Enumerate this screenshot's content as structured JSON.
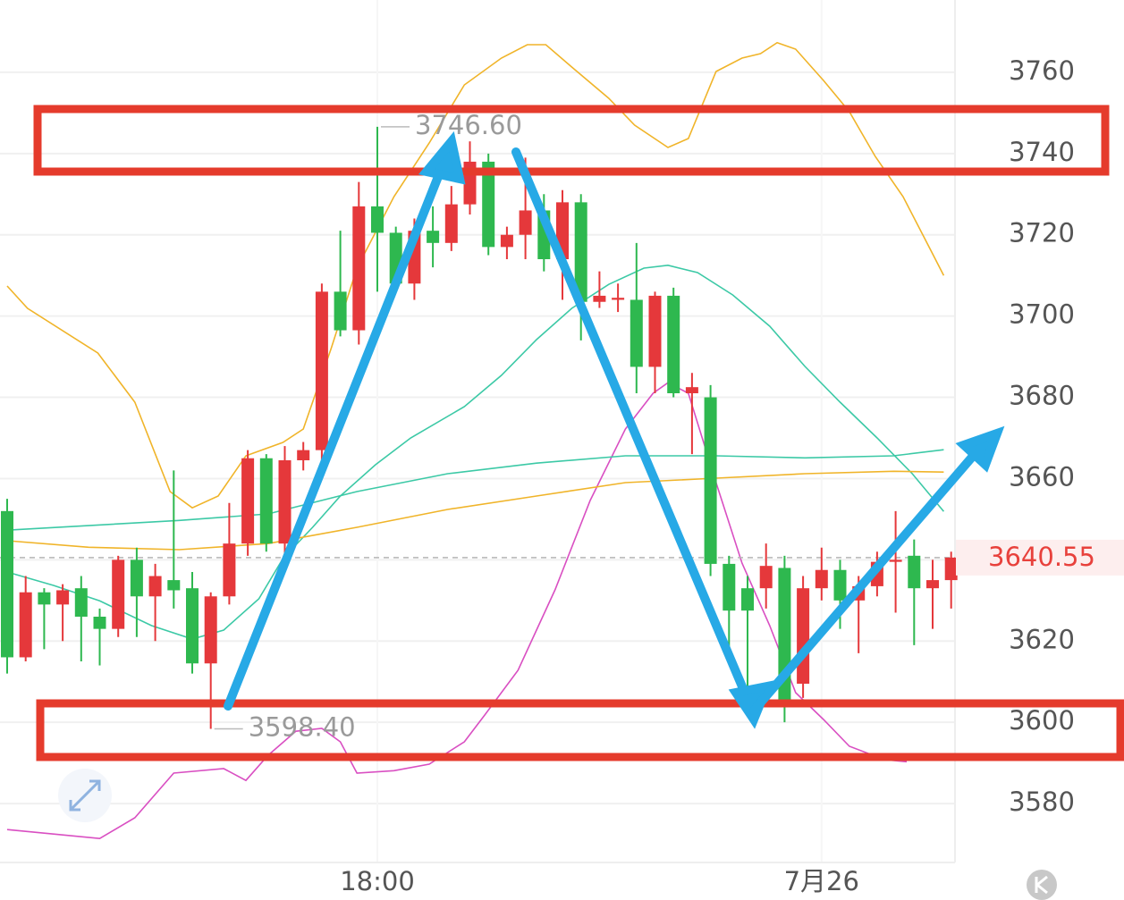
{
  "chart_data": {
    "type": "candlestick",
    "categories": [
      null,
      null,
      null,
      null,
      null,
      null,
      null,
      null,
      null,
      null,
      null,
      null,
      null,
      null,
      null,
      null,
      null,
      null,
      null,
      null,
      "18:00",
      null,
      null,
      null,
      null,
      null,
      null,
      null,
      null,
      null,
      null,
      null,
      null,
      null,
      null,
      null,
      null,
      null,
      null,
      null,
      null,
      null,
      null,
      null,
      "7月26",
      null,
      null,
      null,
      null,
      null,
      null,
      null
    ],
    "open": [
      3652,
      3616,
      3632,
      3629,
      3633,
      3626,
      3623,
      3640,
      3631,
      3635,
      3633,
      3614.5,
      3631,
      3644,
      3665,
      3644,
      3664.5,
      3667,
      3706,
      3696.5,
      3727,
      3720.5,
      3708,
      3721,
      3718,
      3727.5,
      3738,
      3717,
      3720,
      3726,
      3714,
      3728,
      3703.5,
      3704,
      3704,
      3687.5,
      3705,
      3681,
      3680,
      3639,
      3633,
      3633,
      3638,
      3609.5,
      3633,
      3637.5,
      3630,
      3633.5,
      3639.5,
      3641,
      3633,
      3635
    ],
    "high": [
      3655,
      3636,
      3633,
      3634,
      3636,
      3628,
      3641,
      3643,
      3639,
      3662,
      3637,
      3632,
      3654,
      3667,
      3666,
      3668,
      3669,
      3708,
      3721,
      3733,
      3746.6,
      3722,
      3724,
      3727,
      3732,
      3743,
      3740,
      3722,
      3739,
      3730,
      3731,
      3730,
      3711,
      3708,
      3718,
      3706,
      3707,
      3686,
      3683,
      3641,
      3636,
      3644,
      3641,
      3636,
      3643,
      3640,
      3636,
      3642,
      3652,
      3645,
      3640,
      3642
    ],
    "low": [
      3612,
      3615,
      3618,
      3620,
      3615,
      3614,
      3621,
      3621,
      3620,
      3628,
      3612,
      3598.4,
      3629,
      3641,
      3642,
      3641,
      3662,
      3664,
      3695,
      3693,
      3706,
      3706,
      3704,
      3712,
      3716,
      3725,
      3715,
      3714,
      3714,
      3711,
      3704,
      3694,
      3702,
      3701,
      3681,
      3681,
      3680,
      3666,
      3636,
      3617,
      3605,
      3628,
      3600,
      3606,
      3630,
      3623,
      3617,
      3631,
      3627,
      3619,
      3623,
      3628
    ],
    "close": [
      3616,
      3632,
      3629,
      3632.5,
      3626,
      3623,
      3640,
      3631,
      3636,
      3632.5,
      3614.5,
      3631,
      3644,
      3665,
      3644,
      3664.5,
      3667,
      3706,
      3696.5,
      3727,
      3720.5,
      3708,
      3721,
      3718,
      3727.5,
      3738,
      3717,
      3720,
      3726,
      3714,
      3728,
      3703.5,
      3705,
      3704.5,
      3687.5,
      3705,
      3681,
      3682.5,
      3639,
      3627.5,
      3627.5,
      3638.5,
      3604,
      3633,
      3637.5,
      3630,
      3633.5,
      3639.5,
      3640,
      3633,
      3635,
      3640.55
    ],
    "up_color": "#e5383b",
    "down_color": "#2eb84f",
    "lines": [
      {
        "color": "#f0b429",
        "x": [
          0,
          1.1,
          4.9,
          6.9,
          8.8,
          10,
          11.4,
          12.9,
          14.9,
          16,
          17.5,
          18.9,
          20.9,
          22.8,
          24.7,
          26.7,
          28.1,
          29.1,
          30.5,
          32.5,
          33.9,
          35.7,
          36.8,
          38.3,
          39.7,
          40.7,
          41.6,
          42.6,
          44.1,
          45.5,
          46.9,
          48.4,
          49.9,
          50.6
        ],
        "values": [
          3707.4,
          3701.9,
          3690.9,
          3678.8,
          3656.8,
          3652.8,
          3655.7,
          3665.6,
          3668.9,
          3672.2,
          3692,
          3711.8,
          3729.4,
          3742.6,
          3756.9,
          3763.5,
          3766.8,
          3766.8,
          3761.3,
          3753.6,
          3747,
          3741.5,
          3743.7,
          3760.2,
          3763.5,
          3764.6,
          3767.3,
          3765.7,
          3758,
          3750.3,
          3739.3,
          3729.4,
          3716.2,
          3710
        ]
      },
      {
        "color": "#d94fc2",
        "x": [
          0,
          2.5,
          5,
          6.9,
          9,
          11.7,
          12.9,
          14.1,
          15.6,
          17,
          18,
          18.9,
          20.9,
          22.8,
          24.7,
          25.8,
          27.6,
          29.6,
          31.5,
          33.4,
          34.9,
          35.7,
          36.8,
          38.3,
          39.7,
          41.2,
          42.6,
          44.1,
          45.5,
          47.4,
          48.6
        ],
        "values": [
          3573.6,
          3572.5,
          3571.4,
          3576.5,
          3587.5,
          3588.6,
          3585.7,
          3591.9,
          3597.8,
          3598.5,
          3595.2,
          3587.5,
          3588.1,
          3589.7,
          3595.2,
          3601.8,
          3612.8,
          3632.6,
          3654.6,
          3672.2,
          3681,
          3683.6,
          3681,
          3659,
          3639.2,
          3623.8,
          3607.3,
          3600.7,
          3594.1,
          3590.8,
          3590.3
        ]
      },
      {
        "color": "#3cc9a6",
        "x": [
          0,
          2.5,
          5,
          7.8,
          10,
          11.7,
          13.6,
          14.9,
          16.5,
          18,
          19.9,
          21.8,
          24.7,
          26.7,
          28.6,
          30.5,
          32.5,
          34.4,
          35.7,
          37.3,
          39.2,
          41.2,
          43.1,
          45,
          47,
          48.9,
          50.6
        ],
        "values": [
          3637,
          3633.7,
          3629.9,
          3623.8,
          3620.5,
          3622.7,
          3630.4,
          3640.3,
          3648,
          3655.7,
          3663.4,
          3670,
          3677.7,
          3685.4,
          3694.2,
          3701.9,
          3707.8,
          3711.8,
          3712.5,
          3710.7,
          3705.2,
          3697.5,
          3687.6,
          3678.8,
          3670,
          3661.2,
          3651.9
        ]
      },
      {
        "color": "#3cc9a6",
        "x": [
          0,
          9.3,
          14.1,
          18.9,
          23.8,
          28.6,
          33.4,
          38.3,
          43.1,
          47.9,
          50.6
        ],
        "values": [
          3647.3,
          3649.7,
          3651.3,
          3656.8,
          3661.2,
          3663.8,
          3665.6,
          3665.6,
          3665.1,
          3665.6,
          3667.1
        ]
      },
      {
        "color": "#f0b429",
        "x": [
          0,
          4.4,
          9.3,
          14.1,
          18.9,
          23.8,
          28.6,
          33.4,
          38.3,
          43.1,
          47.9,
          50.6
        ],
        "values": [
          3644.7,
          3643.1,
          3642.5,
          3644,
          3648,
          3652.4,
          3655.7,
          3659,
          3660.1,
          3661.2,
          3661.8,
          3661.6
        ]
      }
    ],
    "high_label": "3746.60",
    "low_label": "3598.40",
    "last_price": {
      "value": 3640.55,
      "label": "3640.55"
    },
    "ylim": [
      3565.5,
      3777.8
    ],
    "yticks": [
      3580,
      3600,
      3620,
      3640,
      3660,
      3680,
      3700,
      3720,
      3740,
      3760
    ],
    "grid": true
  }
}
